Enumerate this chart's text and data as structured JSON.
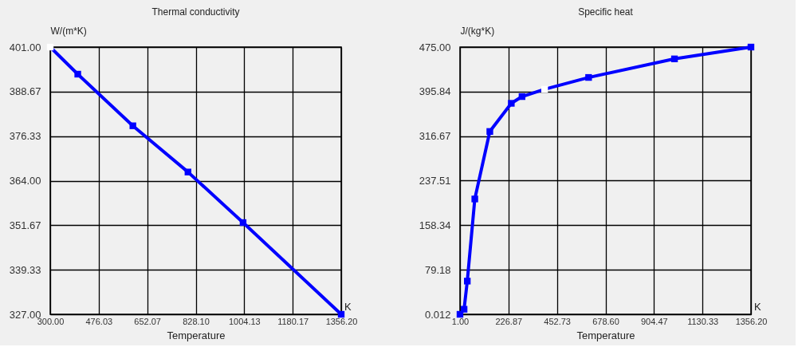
{
  "chart_data": [
    {
      "type": "line",
      "title": "Thermal conductivity",
      "xlabel": "Temperature",
      "ylabel": "W/(m*K)",
      "annotations": [
        "K"
      ],
      "grid": true,
      "marker": "square",
      "line_style": "solid",
      "xlim": [
        300,
        1356.2
      ],
      "xticks": [
        {
          "value": 300,
          "label": "300.00"
        },
        {
          "value": 476.03,
          "label": "476.03"
        },
        {
          "value": 652.07,
          "label": "652.07"
        },
        {
          "value": 828.1,
          "label": "828.10"
        },
        {
          "value": 1004.13,
          "label": "1004.13"
        },
        {
          "value": 1180.17,
          "label": "1180.17"
        },
        {
          "value": 1356.2,
          "label": "1356.20"
        }
      ],
      "ylim": [
        327,
        401
      ],
      "yticks": [
        {
          "value": 327,
          "label": "327.00"
        },
        {
          "value": 339.33,
          "label": "339.33"
        },
        {
          "value": 351.67,
          "label": "351.67"
        },
        {
          "value": 364,
          "label": "364.00"
        },
        {
          "value": 376.33,
          "label": "376.33"
        },
        {
          "value": 388.67,
          "label": "388.67"
        },
        {
          "value": 401,
          "label": "401.00"
        }
      ],
      "series": [
        {
          "color": "#0000ff",
          "colors": [
            "#ffffff",
            "#0000ff",
            "#0000ff",
            "#0000ff",
            "#0000ff",
            "#0000ff"
          ],
          "x": [
            300,
            400,
            600,
            800,
            1000,
            1356.2
          ],
          "values": [
            401,
            393.5,
            379.2,
            366.4,
            352.4,
            327
          ]
        }
      ]
    },
    {
      "type": "line",
      "title": "Specific heat",
      "xlabel": "Temperature",
      "ylabel": "J/(kg*K)",
      "annotations": [
        "K"
      ],
      "grid": true,
      "marker": "square",
      "line_style": "solid",
      "xlim": [
        1,
        1356.2
      ],
      "xticks": [
        {
          "value": 1,
          "label": "1.00"
        },
        {
          "value": 226.87,
          "label": "226.87"
        },
        {
          "value": 452.73,
          "label": "452.73"
        },
        {
          "value": 678.6,
          "label": "678.60"
        },
        {
          "value": 904.47,
          "label": "904.47"
        },
        {
          "value": 1130.33,
          "label": "1130.33"
        },
        {
          "value": 1356.2,
          "label": "1356.20"
        }
      ],
      "ylim": [
        0.012,
        475
      ],
      "yticks": [
        0.012,
        {
          "value": 79.18,
          "label": "79.18"
        },
        {
          "value": 158.34,
          "label": "158.34"
        },
        {
          "value": 237.51,
          "label": "237.51"
        },
        {
          "value": 316.67,
          "label": "316.67"
        },
        {
          "value": 395.84,
          "label": "395.84"
        },
        {
          "value": 475,
          "label": "475.00"
        }
      ],
      "series": [
        {
          "color": "#0000ff",
          "colors": [
            "#0000ff",
            "#0000ff",
            "#0000ff",
            "#0000ff",
            "#0000ff",
            "#0000ff",
            "#0000ff",
            "#ffffff",
            "#0000ff",
            "#0000ff",
            "#0000ff"
          ],
          "x": [
            1,
            20,
            35,
            70,
            140,
            240,
            290,
            395,
            600,
            1000,
            1356.2
          ],
          "values": [
            0.012,
            9,
            59,
            205,
            325,
            375,
            387,
            400,
            421,
            454,
            475
          ]
        }
      ]
    }
  ]
}
